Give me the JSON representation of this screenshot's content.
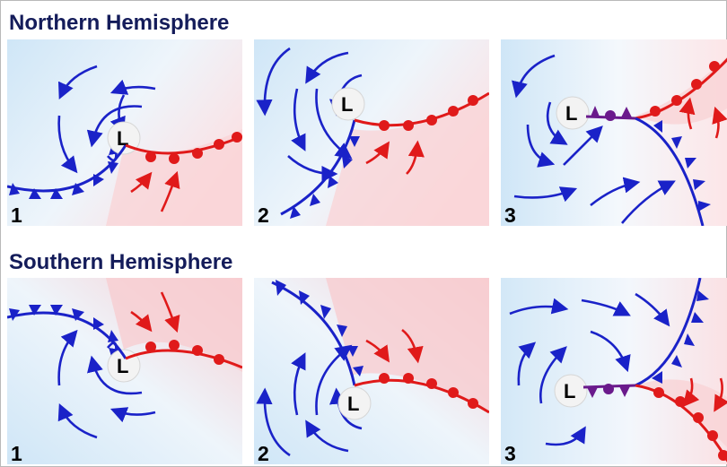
{
  "titles": {
    "northern": "Northern Hemisphere",
    "southern": "Southern Hemisphere"
  },
  "panels": {
    "n1": {
      "stage": "1",
      "low": "L"
    },
    "n2": {
      "stage": "2",
      "low": "L"
    },
    "n3": {
      "stage": "3",
      "low": "L"
    },
    "s1": {
      "stage": "1",
      "low": "L"
    },
    "s2": {
      "stage": "2",
      "low": "L"
    },
    "s3": {
      "stage": "3",
      "low": "L"
    }
  },
  "colors": {
    "cold_front": "#1a22c8",
    "warm_front": "#e01a1a",
    "occluded_front": "#6a1a8c",
    "cold_air": "#cfe6f7",
    "warm_air": "#f9d3d6",
    "title": "#141c5a"
  }
}
